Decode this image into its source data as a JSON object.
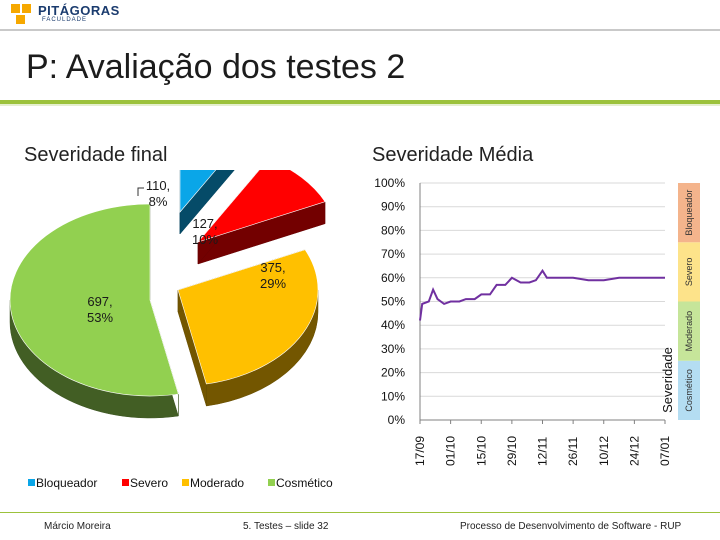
{
  "header": {
    "logo_text": "PITÁGORAS",
    "logo_subtext": "FACULDADE",
    "title": "P: Avaliação dos testes 2"
  },
  "subtitles": {
    "left": "Severidade final",
    "right": "Severidade Média"
  },
  "chart_data": [
    {
      "type": "pie",
      "title": "Severidade final",
      "slices": [
        {
          "name": "Bloqueador",
          "value": 110,
          "percent": 8,
          "label": "110, 8%",
          "color": "#0aa6e8"
        },
        {
          "name": "Severo",
          "value": 127,
          "percent": 10,
          "label": "127, 10%",
          "color": "#ff0000"
        },
        {
          "name": "Moderado",
          "value": 375,
          "percent": 29,
          "label": "375, 29%",
          "color": "#ffc000"
        },
        {
          "name": "Cosmético",
          "value": 697,
          "percent": 53,
          "label": "697, 53%",
          "color": "#92d050"
        }
      ],
      "legend": [
        "Bloqueador",
        "Severo",
        "Moderado",
        "Cosmético"
      ],
      "legend_position": "bottom"
    },
    {
      "type": "line",
      "title": "Severidade Média",
      "ylabel": "Severidade",
      "yticks": [
        "100%",
        "90%",
        "80%",
        "70%",
        "60%",
        "50%",
        "40%",
        "30%",
        "20%",
        "10%",
        "0%"
      ],
      "ylim": [
        0,
        100
      ],
      "xticks": [
        "17/09",
        "01/10",
        "15/10",
        "29/10",
        "12/11",
        "26/11",
        "10/12",
        "24/12",
        "07/01"
      ],
      "bands": [
        {
          "name": "Cosmético",
          "from": 0,
          "to": 25,
          "color": "#b4ddf2"
        },
        {
          "name": "Moderado",
          "from": 25,
          "to": 50,
          "color": "#c6e59a"
        },
        {
          "name": "Severo",
          "from": 50,
          "to": 75,
          "color": "#fde38a"
        },
        {
          "name": "Bloqueador",
          "from": 75,
          "to": 100,
          "color": "#f4b48c"
        }
      ],
      "series": [
        {
          "color": "#7030a0",
          "points": [
            [
              "17/09",
              42
            ],
            [
              "18/09",
              49
            ],
            [
              "21/09",
              50
            ],
            [
              "23/09",
              55
            ],
            [
              "25/09",
              51
            ],
            [
              "28/09",
              49
            ],
            [
              "01/10",
              50
            ],
            [
              "05/10",
              50
            ],
            [
              "08/10",
              51
            ],
            [
              "12/10",
              51
            ],
            [
              "15/10",
              53
            ],
            [
              "19/10",
              53
            ],
            [
              "22/10",
              57
            ],
            [
              "26/10",
              57
            ],
            [
              "29/10",
              60
            ],
            [
              "02/11",
              58
            ],
            [
              "06/11",
              58
            ],
            [
              "09/11",
              59
            ],
            [
              "12/11",
              63
            ],
            [
              "14/11",
              60
            ],
            [
              "19/11",
              60
            ],
            [
              "26/11",
              60
            ],
            [
              "03/12",
              59
            ],
            [
              "10/12",
              59
            ],
            [
              "17/12",
              60
            ],
            [
              "24/12",
              60
            ],
            [
              "31/12",
              60
            ],
            [
              "07/01",
              60
            ]
          ]
        }
      ],
      "grid": true
    }
  ],
  "footer": {
    "author": "Márcio Moreira",
    "slide": "5. Testes – slide 32",
    "course": "Processo de Desenvolvimento de Software - RUP"
  }
}
